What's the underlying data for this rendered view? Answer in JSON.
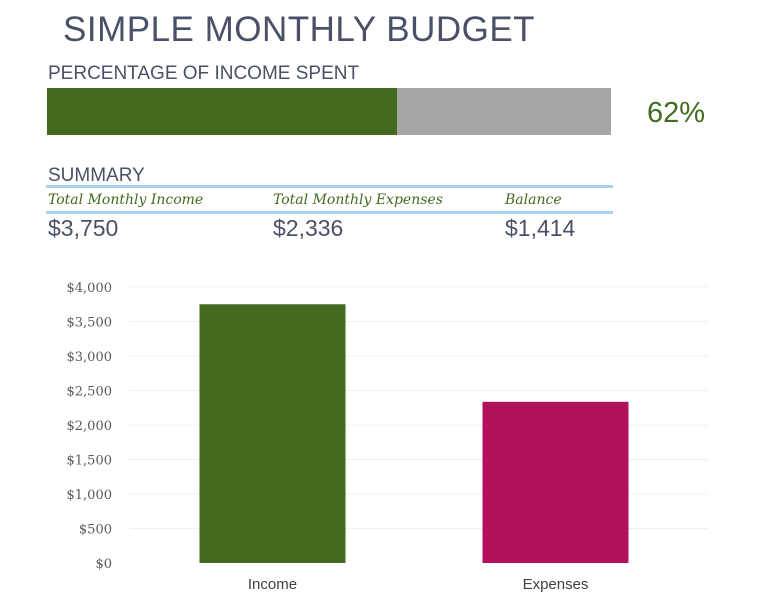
{
  "title": "SIMPLE MONTHLY BUDGET",
  "progress": {
    "label": "PERCENTAGE OF INCOME SPENT",
    "percent": 62,
    "percent_text": "62%",
    "fill_color": "#426b1f",
    "track_color": "#a6a6a6"
  },
  "summary": {
    "label": "SUMMARY",
    "headers": [
      "Total Monthly Income",
      "Total Monthly Expenses",
      "Balance"
    ],
    "values": [
      "$3,750",
      "$2,336",
      "$1,414"
    ]
  },
  "chart_data": {
    "type": "bar",
    "categories": [
      "Income",
      "Expenses"
    ],
    "values": [
      3750,
      2336
    ],
    "colors": [
      "#426b1f",
      "#b0115a"
    ],
    "ylim": [
      0,
      4000
    ],
    "yticks": [
      "$0",
      "$500",
      "$1,000",
      "$1,500",
      "$2,000",
      "$2,500",
      "$3,000",
      "$3,500",
      "$4,000"
    ],
    "grid": true,
    "title": "",
    "xlabel": "",
    "ylabel": ""
  }
}
